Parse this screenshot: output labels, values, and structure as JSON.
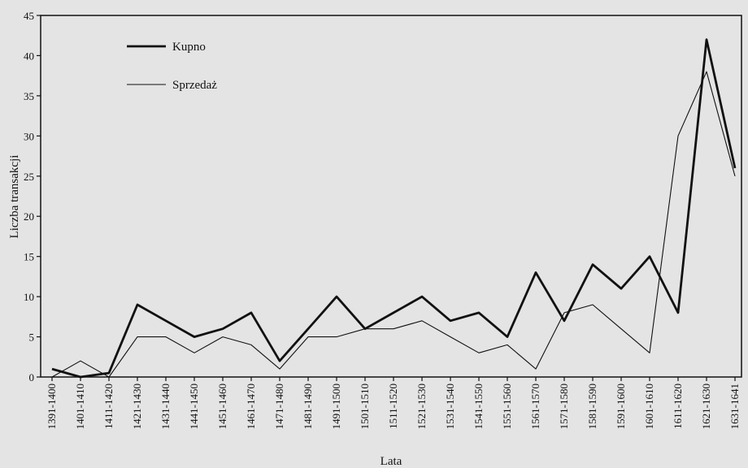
{
  "chart_data": {
    "type": "line",
    "xlabel": "Lata",
    "ylabel": "Liczba transakcji",
    "ylim": [
      0,
      45
    ],
    "yticks": [
      0,
      5,
      10,
      15,
      20,
      25,
      30,
      35,
      40,
      45
    ],
    "grid": false,
    "legend_position": "top-left",
    "categories": [
      "1391-1400",
      "1401-1410",
      "1411-1420",
      "1421-1430",
      "1431-1440",
      "1441-1450",
      "1451-1460",
      "1461-1470",
      "1471-1480",
      "1481-1490",
      "1491-1500",
      "1501-1510",
      "1511-1520",
      "1521-1530",
      "1531-1540",
      "1541-1550",
      "1551-1560",
      "1561-1570",
      "1571-1580",
      "1581-1590",
      "1591-1600",
      "1601-1610",
      "1611-1620",
      "1621-1630",
      "1631-1641"
    ],
    "series": [
      {
        "name": "Kupno",
        "color": "#111111",
        "values": [
          1,
          0,
          0.5,
          9,
          7,
          5,
          6,
          8,
          2,
          6,
          10,
          6,
          8,
          10,
          7,
          8,
          5,
          13,
          7,
          14,
          11,
          15,
          8,
          42,
          26
        ]
      },
      {
        "name": "Sprzedaż",
        "color": "#111111",
        "values": [
          0,
          2,
          0,
          5,
          5,
          3,
          5,
          4,
          1,
          5,
          5,
          6,
          6,
          7,
          5,
          3,
          4,
          1,
          8,
          9,
          6,
          3,
          30,
          38,
          25
        ]
      }
    ]
  }
}
